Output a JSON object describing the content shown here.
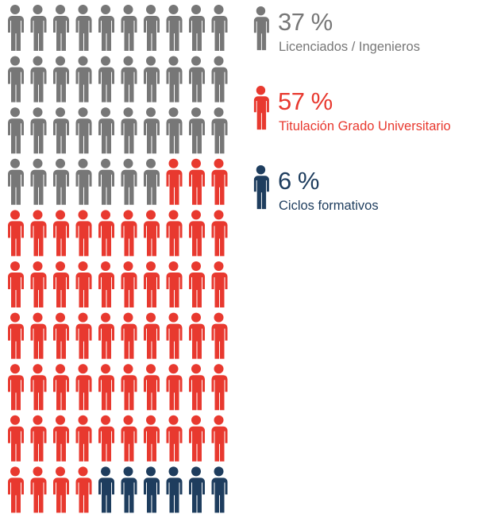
{
  "chart_data": {
    "type": "waffle",
    "categories": [
      "Licenciados / Ingenieros",
      "Titulación Grado Universitario",
      "Ciclos formativos"
    ],
    "values": [
      37,
      57,
      6
    ],
    "value_labels": [
      "37 %",
      "57 %",
      "6 %"
    ],
    "colors": [
      "#777777",
      "#e8392f",
      "#1e3d5e"
    ],
    "rows": 10,
    "columns": 10
  }
}
